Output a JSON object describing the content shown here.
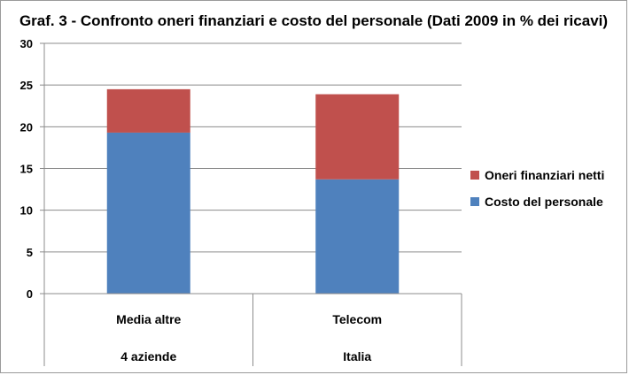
{
  "chart_data": {
    "type": "bar",
    "stacked": true,
    "title": "Graf. 3 - Confronto oneri finanziari e costo del personale (Dati 2009 in % dei ricavi)",
    "categories": [
      {
        "line1": "Media altre",
        "line2": "4 aziende"
      },
      {
        "line1": "Telecom",
        "line2": "Italia"
      }
    ],
    "series": [
      {
        "name": "Costo del personale",
        "color": "#4f81bd",
        "values": [
          19.3,
          13.7
        ]
      },
      {
        "name": "Oneri finanziari  netti",
        "color": "#c0504d",
        "values": [
          5.2,
          10.2
        ]
      }
    ],
    "ylim": [
      0,
      30
    ],
    "yticks": [
      "0",
      "5",
      "10",
      "15",
      "20",
      "25",
      "30"
    ],
    "grid": true,
    "legend_position": "right"
  },
  "legend_order": [
    1,
    0
  ]
}
